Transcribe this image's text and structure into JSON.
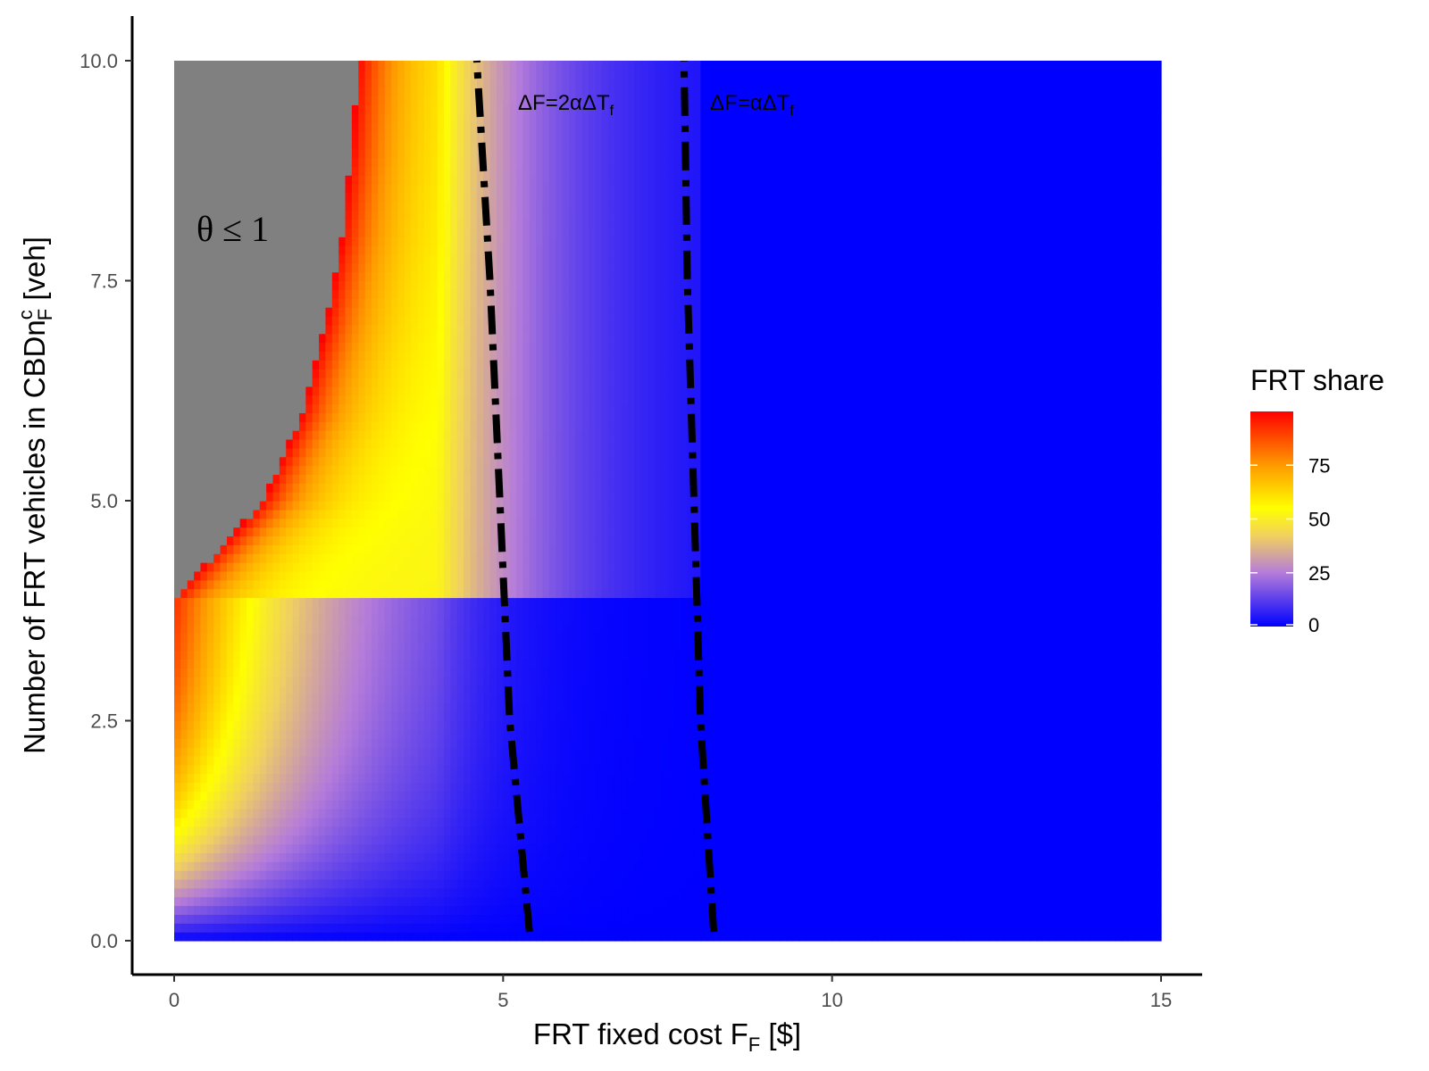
{
  "chart_data": {
    "type": "heatmap",
    "xlabel": "FRT fixed cost F",
    "xlabel_subscript": "F",
    "xlabel_suffix": " [$]",
    "ylabel": "Number of FRT vehicles in CBDn",
    "ylabel_superscript": "c",
    "ylabel_subscript": "F",
    "ylabel_suffix": " [veh]",
    "xlim": [
      0,
      15
    ],
    "ylim": [
      0,
      10
    ],
    "x_ticks": [
      0,
      5,
      10,
      15
    ],
    "x_tick_labels": [
      "0",
      "5",
      "10",
      "15"
    ],
    "y_ticks": [
      0,
      2.5,
      5,
      7.5,
      10
    ],
    "y_tick_labels": [
      "0.0",
      "2.5",
      "5.0",
      "7.5",
      "10.0"
    ],
    "grid": false,
    "legend": {
      "title": "FRT share",
      "placement": "right",
      "ticks": [
        0,
        25,
        50,
        75
      ],
      "tick_labels": [
        "0",
        "25",
        "50",
        "75"
      ],
      "range": [
        0,
        100
      ],
      "color_stops": [
        {
          "value": 0,
          "color": "#0000ff"
        },
        {
          "value": 25,
          "color": "#b57cd9"
        },
        {
          "value": 42,
          "color": "#f0d060"
        },
        {
          "value": 55,
          "color": "#ffff00"
        },
        {
          "value": 75,
          "color": "#ff9a00"
        },
        {
          "value": 100,
          "color": "#ff0000"
        }
      ]
    },
    "na_color": "#808080",
    "region_label": "θ ≤ 1",
    "infeasible_boundary": [
      {
        "y": 3.9,
        "x": 0.0
      },
      {
        "y": 5.0,
        "x": 1.35
      },
      {
        "y": 6.0,
        "x": 1.95
      },
      {
        "y": 7.0,
        "x": 2.3
      },
      {
        "y": 8.0,
        "x": 2.55
      },
      {
        "y": 9.0,
        "x": 2.7
      },
      {
        "y": 10.0,
        "x": 2.8
      }
    ],
    "series": [
      {
        "name": "ΔF=2αΔT",
        "name_subscript": "f",
        "style": "dashdot",
        "points": [
          [
            5.4,
            0.1
          ],
          [
            5.1,
            2.5
          ],
          [
            4.95,
            5.0
          ],
          [
            4.8,
            7.5
          ],
          [
            4.6,
            10.0
          ]
        ]
      },
      {
        "name": "ΔF=αΔT",
        "name_subscript": "f",
        "style": "dashdot",
        "points": [
          [
            8.2,
            0.1
          ],
          [
            8.0,
            2.5
          ],
          [
            7.9,
            5.0
          ],
          [
            7.8,
            7.5
          ],
          [
            7.75,
            10.0
          ]
        ]
      }
    ]
  }
}
